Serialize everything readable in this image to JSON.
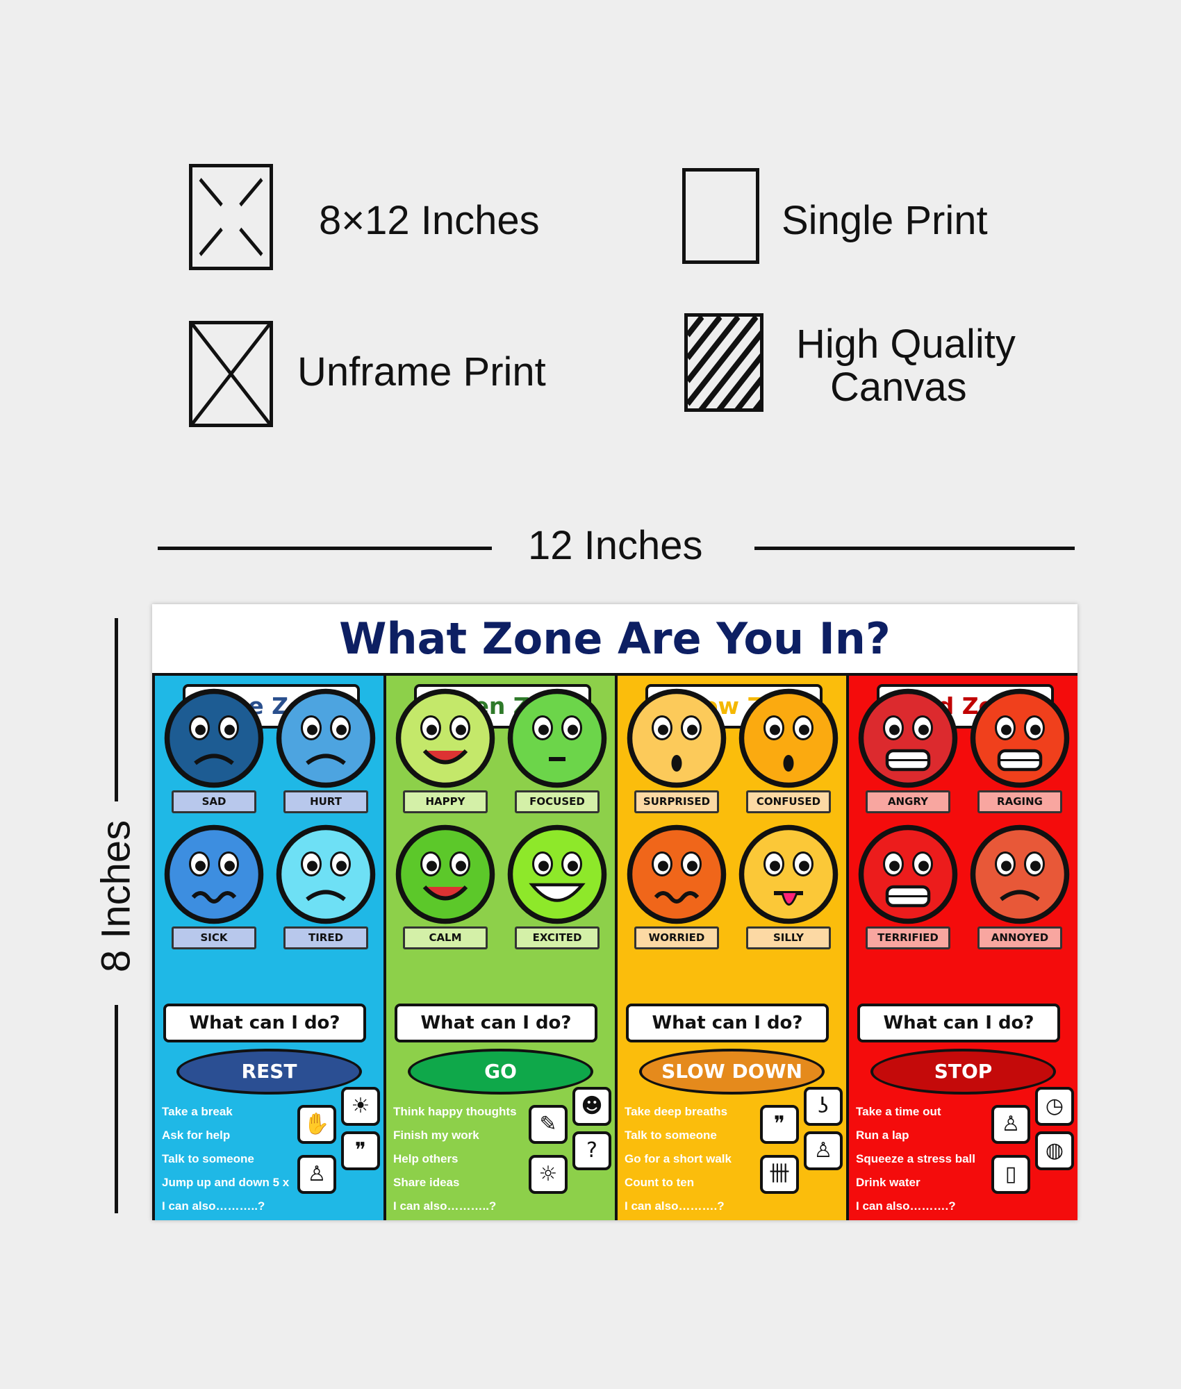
{
  "features": {
    "size": "8×12 Inches",
    "single": "Single Print",
    "unframe": "Unframe Print",
    "canvas_line1": "High Quality",
    "canvas_line2": "Canvas"
  },
  "dimensions": {
    "width": "12 Inches",
    "height": "8 Inches"
  },
  "poster": {
    "title": "What Zone Are You In?",
    "zones": [
      {
        "name": "Blue Zone",
        "bg": "#1fb8e6",
        "title_color": "#2a4f8d",
        "label_bg": "#b8c8ec",
        "action_bg": "#2b4f93",
        "what": "What can I do?",
        "action": "REST",
        "emotions": [
          {
            "label": "SAD",
            "color": "#1d5c93",
            "expression": "frown"
          },
          {
            "label": "HURT",
            "color": "#4da4e0",
            "expression": "frown"
          },
          {
            "label": "SICK",
            "color": "#3d8ee0",
            "expression": "wavy"
          },
          {
            "label": "TIRED",
            "color": "#6ee0f5",
            "expression": "frown"
          }
        ],
        "actions": [
          "Take a break",
          "Ask for help",
          "Talk to someone",
          "Jump up and down 5 x",
          "I can also………..?"
        ],
        "icons": [
          {
            "name": "hammock-icon",
            "glyph": "☀"
          },
          {
            "name": "raised-hand-icon",
            "glyph": "✋"
          },
          {
            "name": "speech-bubbles-icon",
            "glyph": "❞"
          },
          {
            "name": "jump-rope-icon",
            "glyph": "♙"
          }
        ]
      },
      {
        "name": "Green Zone",
        "bg": "#8dd04a",
        "title_color": "#2f7a2a",
        "label_bg": "#d4f0a8",
        "action_bg": "#0fa84a",
        "what": "What can I do?",
        "action": "GO",
        "emotions": [
          {
            "label": "HAPPY",
            "color": "#c4e86a",
            "expression": "smile"
          },
          {
            "label": "FOCUSED",
            "color": "#6cd54a",
            "expression": "flat"
          },
          {
            "label": "CALM",
            "color": "#5cc82a",
            "expression": "smile"
          },
          {
            "label": "EXCITED",
            "color": "#8ee82a",
            "expression": "grin"
          }
        ],
        "actions": [
          "Think happy thoughts",
          "Finish my work",
          "Help others",
          "Share ideas",
          "I can also………..?"
        ],
        "icons": [
          {
            "name": "wink-face-icon",
            "glyph": "☻"
          },
          {
            "name": "work-edit-icon",
            "glyph": "✎"
          },
          {
            "name": "people-question-icon",
            "glyph": "?"
          },
          {
            "name": "lightbulb-icon",
            "glyph": "☼"
          }
        ]
      },
      {
        "name": "Yellow Zone",
        "bg": "#fbbd0c",
        "title_color": "#f5b800",
        "label_bg": "#fcd9a4",
        "action_bg": "#e58a1c",
        "what": "What can I do?",
        "action": "SLOW DOWN",
        "emotions": [
          {
            "label": "SURPRISED",
            "color": "#fcca5a",
            "expression": "o"
          },
          {
            "label": "CONFUSED",
            "color": "#fbaa10",
            "expression": "o"
          },
          {
            "label": "WORRIED",
            "color": "#f0661a",
            "expression": "wavy"
          },
          {
            "label": "SILLY",
            "color": "#fbc838",
            "expression": "tongue"
          }
        ],
        "actions": [
          "Take deep breaths",
          "Talk to someone",
          "Go for a short walk",
          "Count to ten",
          "I can also……….?"
        ],
        "icons": [
          {
            "name": "nose-icon",
            "glyph": "ʖ"
          },
          {
            "name": "speech-bubbles-icon",
            "glyph": "❞"
          },
          {
            "name": "walking-person-icon",
            "glyph": "♙"
          },
          {
            "name": "tally-marks-icon",
            "glyph": "卌"
          }
        ]
      },
      {
        "name": "Red Zone",
        "bg": "#f40c0c",
        "title_color": "#c00000",
        "label_bg": "#f8a6a0",
        "action_bg": "#c40a0a",
        "what": "What can I do?",
        "action": "STOP",
        "emotions": [
          {
            "label": "ANGRY",
            "color": "#dc2a2e",
            "expression": "teeth"
          },
          {
            "label": "RAGING",
            "color": "#f0401c",
            "expression": "teeth"
          },
          {
            "label": "TERRIFIED",
            "color": "#ec1c1c",
            "expression": "teeth"
          },
          {
            "label": "ANNOYED",
            "color": "#e85838",
            "expression": "frown"
          }
        ],
        "actions": [
          "Take a time out",
          "Run a lap",
          "Squeeze a stress ball",
          "Drink water",
          "I can also……….?"
        ],
        "icons": [
          {
            "name": "stopwatch-icon",
            "glyph": "◷"
          },
          {
            "name": "running-person-icon",
            "glyph": "♙"
          },
          {
            "name": "volleyball-icon",
            "glyph": "◍"
          },
          {
            "name": "water-bottle-icon",
            "glyph": "▯"
          }
        ]
      }
    ]
  }
}
